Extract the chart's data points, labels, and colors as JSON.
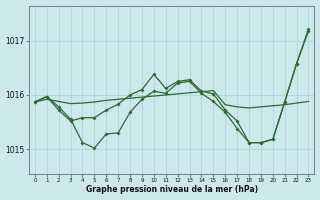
{
  "xlabel": "Graphe pression niveau de la mer (hPa)",
  "bg_color": "#cce8ec",
  "grid_color": "#aacfd8",
  "line_color": "#2d6a2d",
  "ylim": [
    1014.55,
    1017.65
  ],
  "yticks": [
    1015,
    1016,
    1017
  ],
  "xlim": [
    -0.5,
    23.5
  ],
  "xticks": [
    0,
    1,
    2,
    3,
    4,
    5,
    6,
    7,
    8,
    9,
    10,
    11,
    12,
    13,
    14,
    15,
    16,
    17,
    18,
    19,
    20,
    21,
    22,
    23
  ],
  "series_trend": [
    1015.87,
    1015.92,
    1015.88,
    1015.84,
    1015.85,
    1015.87,
    1015.9,
    1015.92,
    1015.94,
    1015.96,
    1015.98,
    1016.0,
    1016.02,
    1016.04,
    1016.06,
    1016.08,
    1015.82,
    1015.78,
    1015.76,
    1015.78,
    1015.8,
    1015.82,
    1015.85,
    1015.88
  ],
  "series_a": [
    1015.87,
    1015.97,
    1015.78,
    1015.55,
    1015.12,
    1015.02,
    1015.28,
    1015.3,
    1015.68,
    1015.92,
    1016.07,
    1016.03,
    1016.22,
    1016.25,
    1016.03,
    1015.88,
    1015.68,
    1015.38,
    1015.12,
    1015.12,
    1015.18,
    1015.87,
    1016.58,
    1017.18
  ],
  "series_b": [
    1015.87,
    1015.97,
    1015.72,
    1015.52,
    1015.58,
    1015.58,
    1015.72,
    1015.83,
    1016.0,
    1016.1,
    1016.38,
    1016.12,
    1016.25,
    1016.28,
    1016.07,
    1016.02,
    1015.72,
    1015.52,
    1015.12,
    1015.12,
    1015.18,
    1015.87,
    1016.58,
    1017.22
  ]
}
